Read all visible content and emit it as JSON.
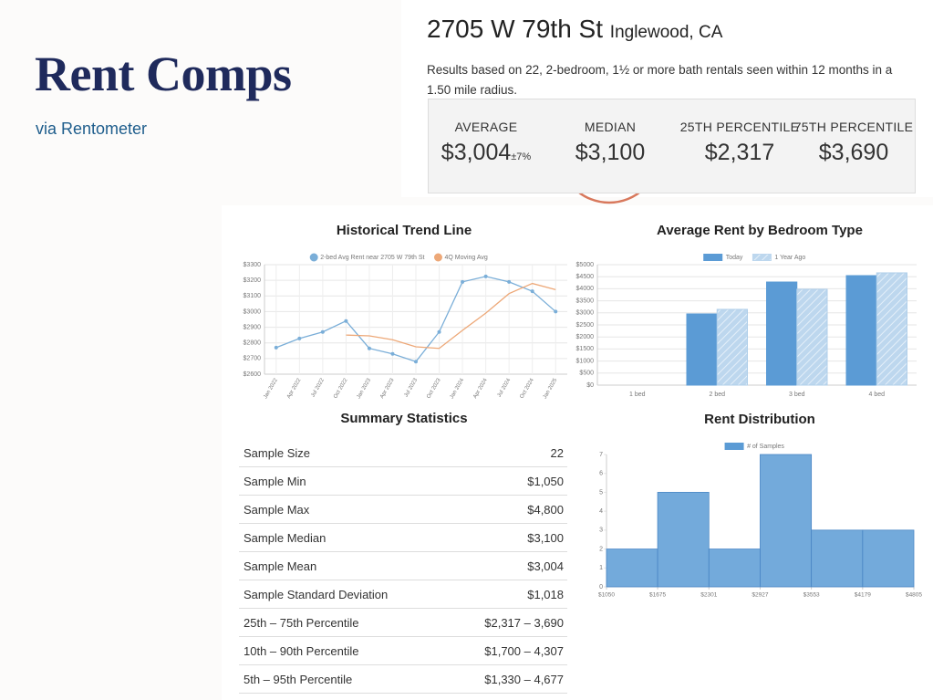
{
  "header": {
    "title": "Rent Comps",
    "subtitle": "via Rentometer"
  },
  "property": {
    "address": "2705 W 79th St",
    "city": "Inglewood, CA",
    "description": "Results based on 22, 2-bedroom, 1½ or more bath rentals seen within 12 months in a 1.50 mile radius.",
    "stats": [
      {
        "label": "AVERAGE",
        "value": "$3,004",
        "note": "±7%"
      },
      {
        "label": "MEDIAN",
        "value": "$3,100"
      },
      {
        "label": "25TH PERCENTILE",
        "value": "$2,317"
      },
      {
        "label": "75TH PERCENTILE",
        "value": "$3,690"
      }
    ]
  },
  "summary": {
    "title": "Summary Statistics",
    "rows": [
      [
        "Sample Size",
        "22"
      ],
      [
        "Sample Min",
        "$1,050"
      ],
      [
        "Sample Max",
        "$4,800"
      ],
      [
        "Sample Median",
        "$3,100"
      ],
      [
        "Sample Mean",
        "$3,004"
      ],
      [
        "Sample Standard Deviation",
        "$1,018"
      ],
      [
        "25th – 75th Percentile",
        "$2,317 – 3,690"
      ],
      [
        "10th – 90th Percentile",
        "$1,700 – 4,307"
      ],
      [
        "5th – 95th Percentile",
        "$1,330 – 4,677"
      ]
    ]
  },
  "chart_data": [
    {
      "type": "line",
      "title": "Historical Trend Line",
      "categories": [
        "Jan 2022",
        "Apr 2022",
        "Jul 2022",
        "Oct 2022",
        "Jan 2023",
        "Apr 2023",
        "Jul 2023",
        "Oct 2023",
        "Jan 2024",
        "Apr 2024",
        "Jul 2024",
        "Oct 2024",
        "Jan 2025"
      ],
      "series": [
        {
          "name": "2-bed Avg Rent near 2705 W 79th St",
          "color": "#7aaed8",
          "markers": true,
          "values": [
            2770,
            2828,
            2870,
            2940,
            2765,
            2730,
            2680,
            2870,
            3190,
            3225,
            3190,
            3130,
            3000
          ]
        },
        {
          "name": "4Q Moving Avg",
          "color": "#eda878",
          "markers": false,
          "values": [
            null,
            null,
            null,
            2850,
            2845,
            2820,
            2775,
            2765,
            2880,
            2990,
            3115,
            3180,
            3140
          ]
        }
      ],
      "ylim": [
        2600,
        3300
      ],
      "yticks": [
        {
          "value": 2600,
          "label": "$2600"
        },
        {
          "value": 2700,
          "label": "$2700"
        },
        {
          "value": 2800,
          "label": "$2800"
        },
        {
          "value": 2900,
          "label": "$2900"
        },
        {
          "value": 3000,
          "label": "$3000"
        },
        {
          "value": 3100,
          "label": "$3100"
        },
        {
          "value": 3200,
          "label": "$3200"
        },
        {
          "value": 3300,
          "label": "$3300"
        }
      ],
      "grid": true
    },
    {
      "type": "bar",
      "title": "Average Rent by Bedroom Type",
      "categories": [
        "1 bed",
        "2 bed",
        "3 bed",
        "4 bed"
      ],
      "series": [
        {
          "name": "Today",
          "color": "#5b9bd5",
          "values": [
            null,
            2955,
            4280,
            4545
          ]
        },
        {
          "name": "1 Year Ago",
          "color": "#bdd7ee",
          "hatched": true,
          "values": [
            null,
            3145,
            3980,
            4660
          ]
        }
      ],
      "ylim": [
        0,
        5000
      ],
      "yticks": [
        {
          "value": 0,
          "label": "$0"
        },
        {
          "value": 500,
          "label": "$500"
        },
        {
          "value": 1000,
          "label": "$1000"
        },
        {
          "value": 1500,
          "label": "$1500"
        },
        {
          "value": 2000,
          "label": "$2000"
        },
        {
          "value": 2500,
          "label": "$2500"
        },
        {
          "value": 3000,
          "label": "$3000"
        },
        {
          "value": 3500,
          "label": "$3500"
        },
        {
          "value": 4000,
          "label": "$4000"
        },
        {
          "value": 4500,
          "label": "$4500"
        },
        {
          "value": 5000,
          "label": "$5000"
        }
      ],
      "grid": true
    },
    {
      "type": "histogram",
      "title": "Rent Distribution",
      "series": [
        {
          "name": "# of Samples",
          "color": "#5b9bd5",
          "values": [
            2,
            5,
            2,
            7,
            3,
            3
          ]
        }
      ],
      "bins": [
        1050,
        1675,
        2301,
        2927,
        3553,
        4179,
        4805
      ],
      "xlim": [
        1050,
        4805
      ],
      "xticks": [
        {
          "value": 1050,
          "label": "$1050"
        },
        {
          "value": 1675,
          "label": "$1675"
        },
        {
          "value": 2301,
          "label": "$2301"
        },
        {
          "value": 2927,
          "label": "$2927"
        },
        {
          "value": 3553,
          "label": "$3553"
        },
        {
          "value": 4179,
          "label": "$4179"
        },
        {
          "value": 4805,
          "label": "$4805"
        }
      ],
      "ylim": [
        0,
        7
      ],
      "yticks": [
        0,
        1,
        2,
        3,
        4,
        5,
        6,
        7
      ],
      "grid": false
    }
  ]
}
